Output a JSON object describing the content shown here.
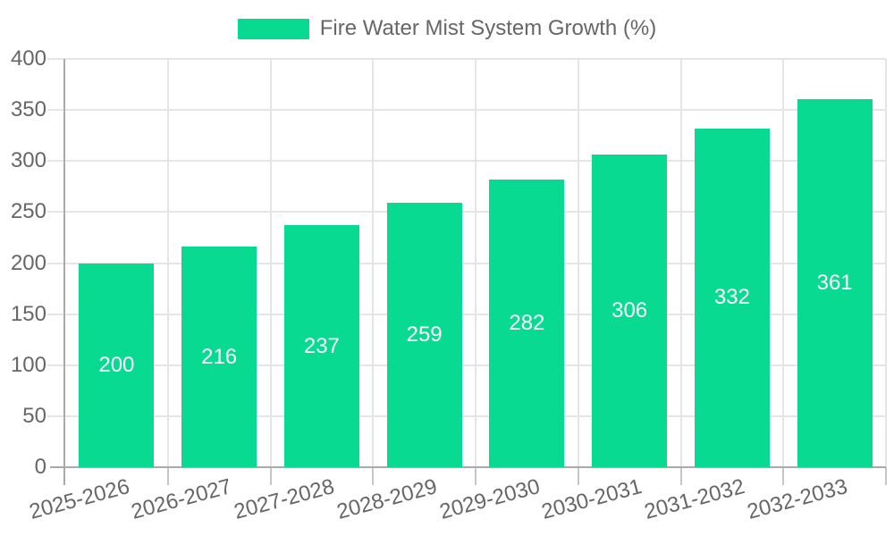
{
  "legend": {
    "label": "Fire Water Mist System Growth (%)"
  },
  "colors": {
    "bar": "#08DA92",
    "legend_text": "#666666",
    "axis_text": "#666666",
    "bar_label": "#FFFFFF",
    "grid": "#E5E5E5",
    "axis_line": "#AAAAAA",
    "x_tick": "#C6C6C6",
    "background": "#FFFFFF"
  },
  "chart_data": {
    "type": "bar",
    "title": "",
    "legend_entries": [
      "Fire Water Mist System Growth (%)"
    ],
    "legend_position": "top-center",
    "categories": [
      "2025-2026",
      "2026-2027",
      "2027-2028",
      "2028-2029",
      "2029-2030",
      "2030-2031",
      "2031-2032",
      "2032-2033"
    ],
    "values": [
      200,
      216,
      237,
      259,
      282,
      306,
      332,
      361
    ],
    "xlabel": "",
    "ylabel": "",
    "ylim": [
      0,
      400
    ],
    "ytick_step": 50,
    "ytick_labels": [
      "0",
      "50",
      "100",
      "150",
      "200",
      "250",
      "300",
      "350",
      "400"
    ],
    "grid": true,
    "x_label_rotation_deg": -15,
    "bar_labels_inside": true
  }
}
